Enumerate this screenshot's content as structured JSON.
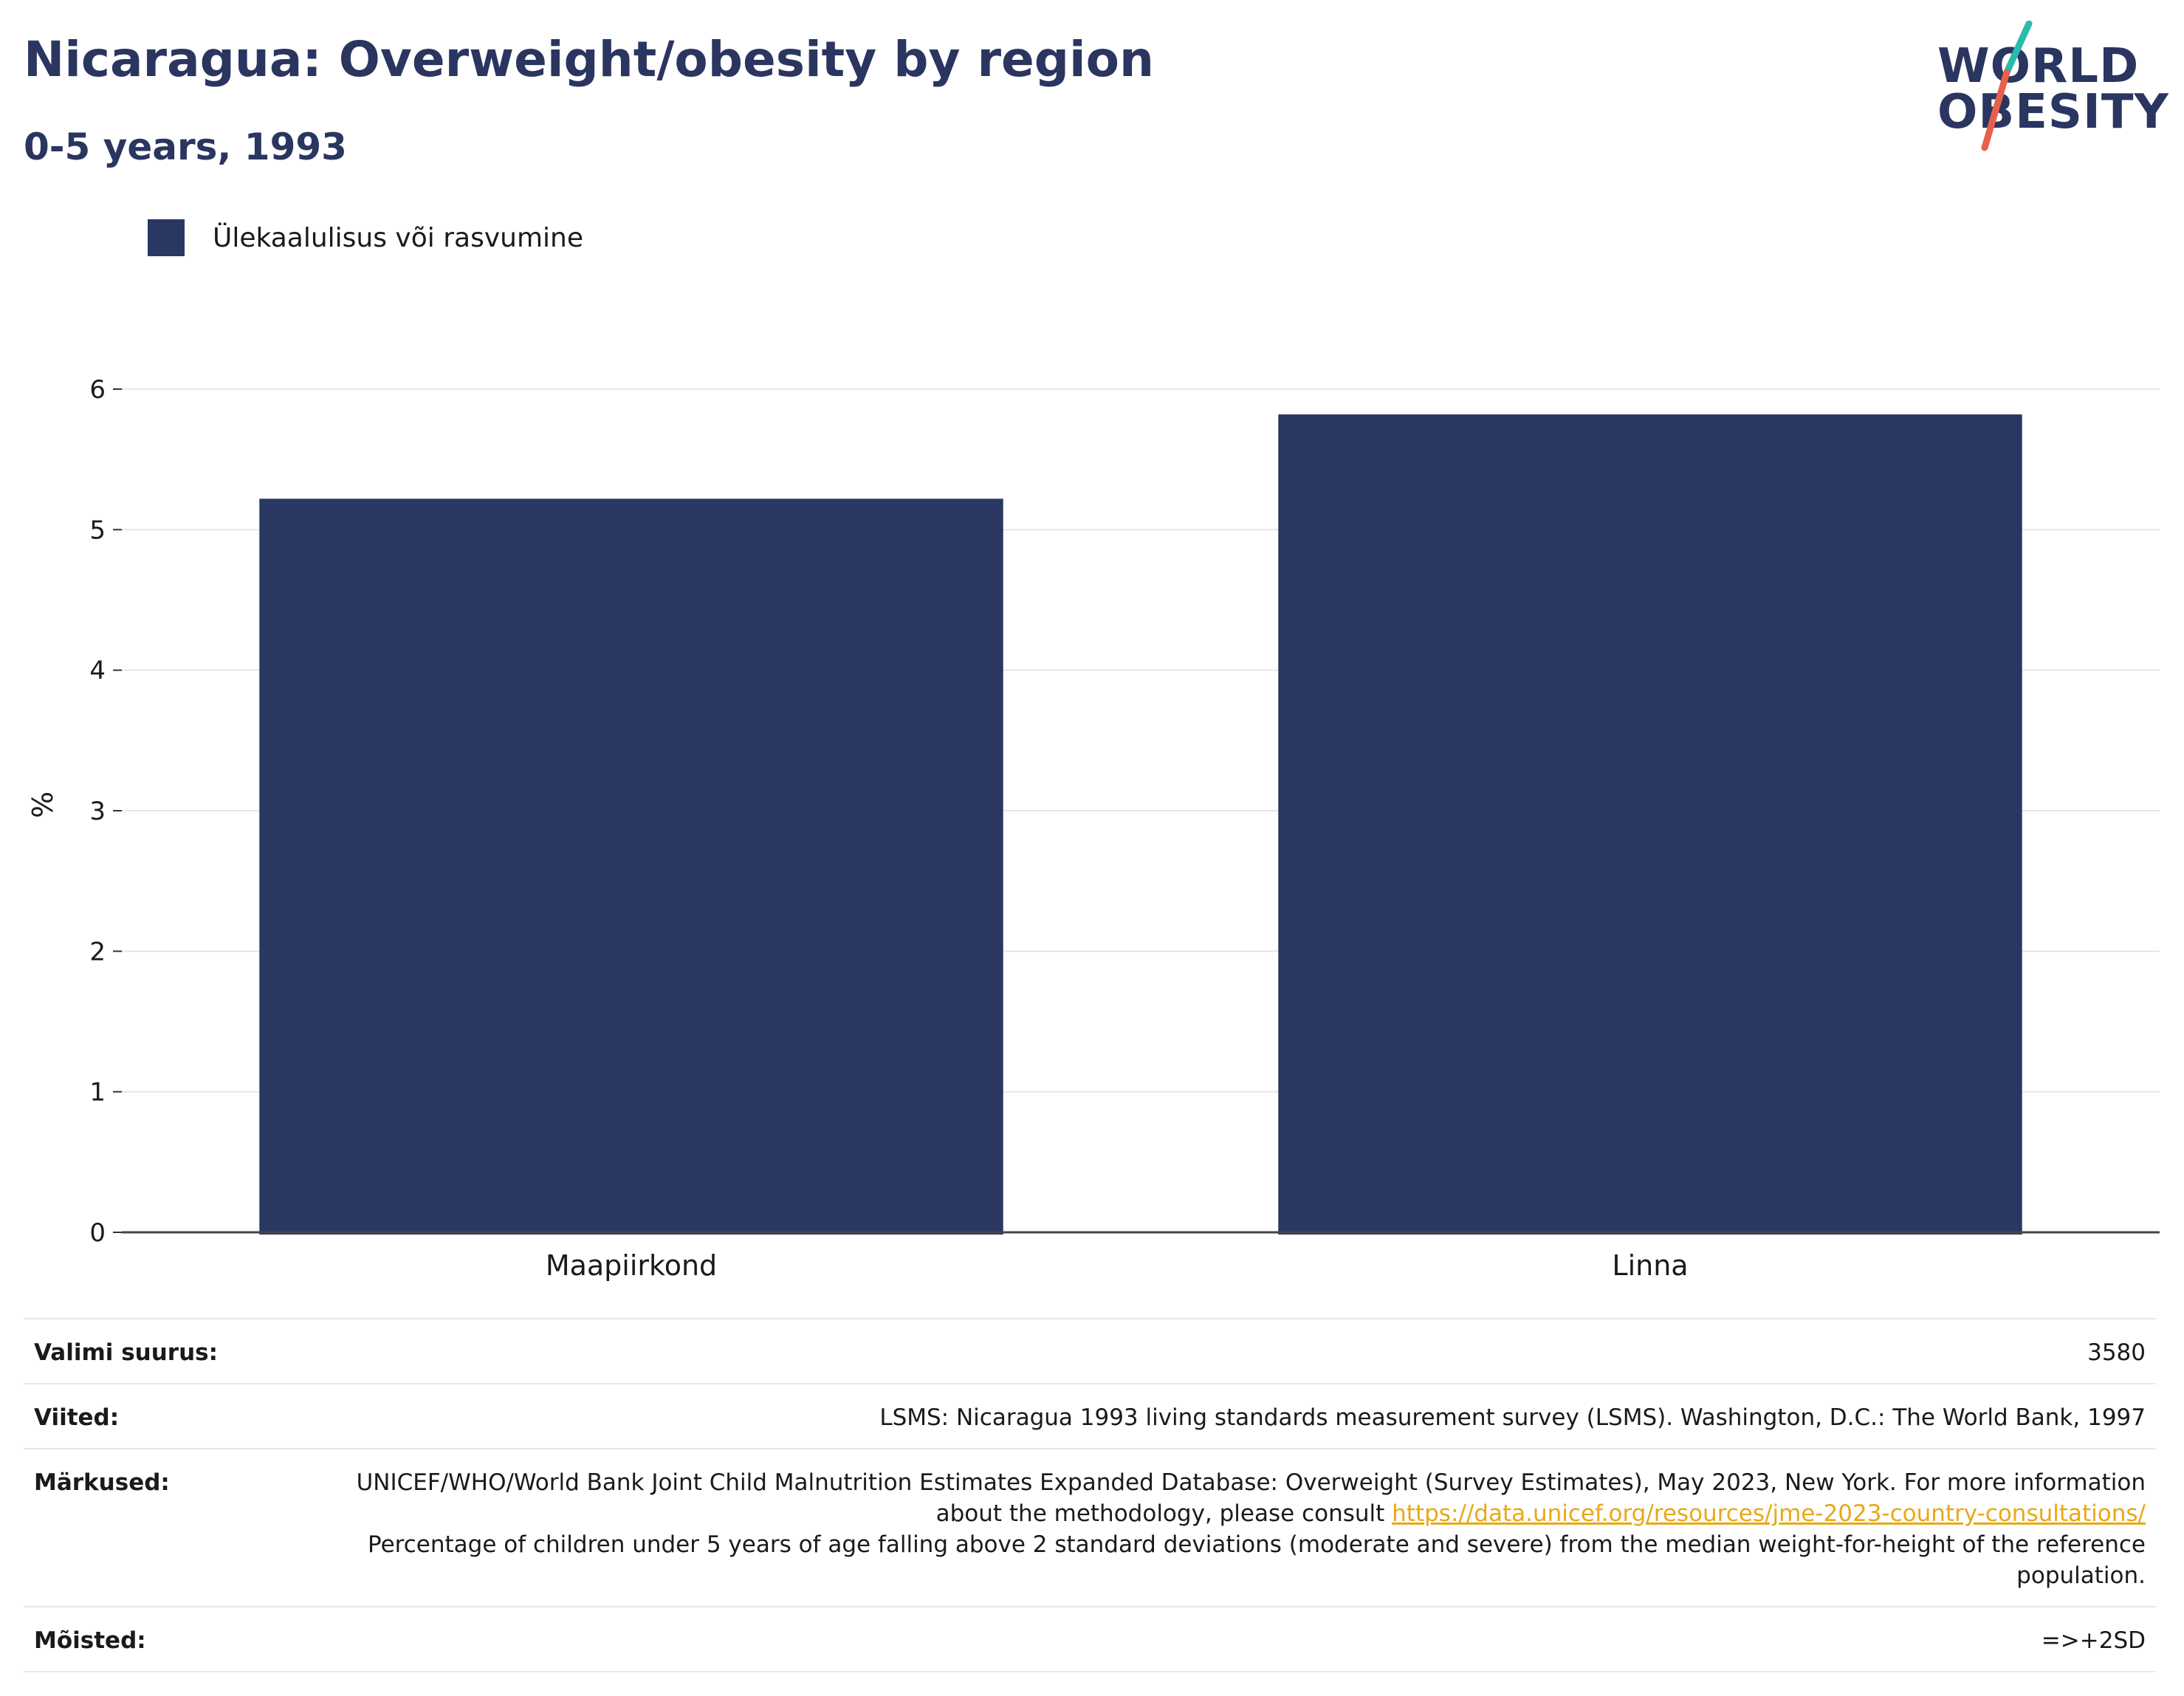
{
  "header": {
    "title": "Nicaragua: Overweight/obesity by region",
    "subtitle": "0-5 years, 1993"
  },
  "logo": {
    "line1": "WORLD",
    "line2": "OBESITY",
    "slash_colors": [
      "#2bbbad",
      "#e8604c"
    ]
  },
  "legend": {
    "label": "Ülekaalulisus või rasvumine",
    "color": "#2a3762"
  },
  "chart_data": {
    "type": "bar",
    "categories": [
      "Maapiirkond",
      "Linna"
    ],
    "series": [
      {
        "name": "Ülekaalulisus või rasvumine",
        "values": [
          5.22,
          5.82
        ],
        "color": "#2a3762"
      }
    ],
    "ylabel": "%",
    "ylim": [
      0,
      6
    ],
    "yticks": [
      0,
      1,
      2,
      3,
      4,
      5,
      6
    ],
    "grid": true,
    "legend_position": "top-left"
  },
  "info": {
    "sample_size": {
      "label": "Valimi suurus:",
      "value": "3580"
    },
    "references": {
      "label": "Viited:",
      "value": "LSMS: Nicaragua 1993 living standards measurement survey (LSMS). Washington, D.C.: The World Bank, 1997"
    },
    "notes": {
      "label": "Märkused:",
      "text_before_link": "UNICEF/WHO/World Bank Joint Child Malnutrition Estimates Expanded Database: Overweight (Survey Estimates), May 2023, New York. For more information about the methodology, please consult ",
      "link": "https://data.unicef.org/resources/jme-2023-country-consultations/",
      "text_after_link": "Percentage of children under 5 years of age falling above 2 standard deviations (moderate and severe) from the median weight-for-height of the reference population."
    },
    "definitions": {
      "label": "Mõisted:",
      "value": "=>+2SD"
    }
  }
}
